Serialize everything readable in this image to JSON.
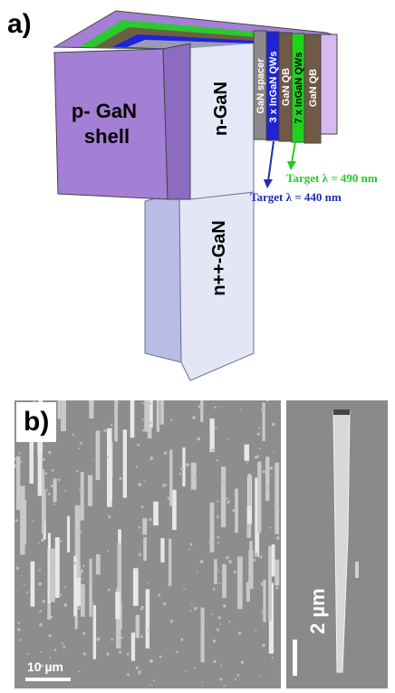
{
  "panel_a": {
    "label": "a)",
    "layers": {
      "shell": "p- GaN\nshell",
      "core": "n-GaN",
      "base": "n++-GaN",
      "spacer": "GaN spacer",
      "qw_blue": "3 x InGaN QWs",
      "qb_1": "GaN QB",
      "qw_green": "7 x InGaN QWs",
      "qb_2": "GaN QB"
    },
    "targets": {
      "green": "Target λ = 490 nm",
      "blue": "Target λ = 440 nm"
    },
    "colors": {
      "shell": "#a47fd6",
      "core": "#e6e8f7",
      "spacer": "#8a8a8a",
      "qw_blue": "#1f22d8",
      "qw_green": "#1ed21e",
      "qb": "#6f5a45",
      "green_text": "#22cc22",
      "blue_text": "#1f2bb0"
    }
  },
  "panel_b": {
    "label": "b)",
    "scale_left": "10 µm",
    "scale_right": "2 µm"
  }
}
